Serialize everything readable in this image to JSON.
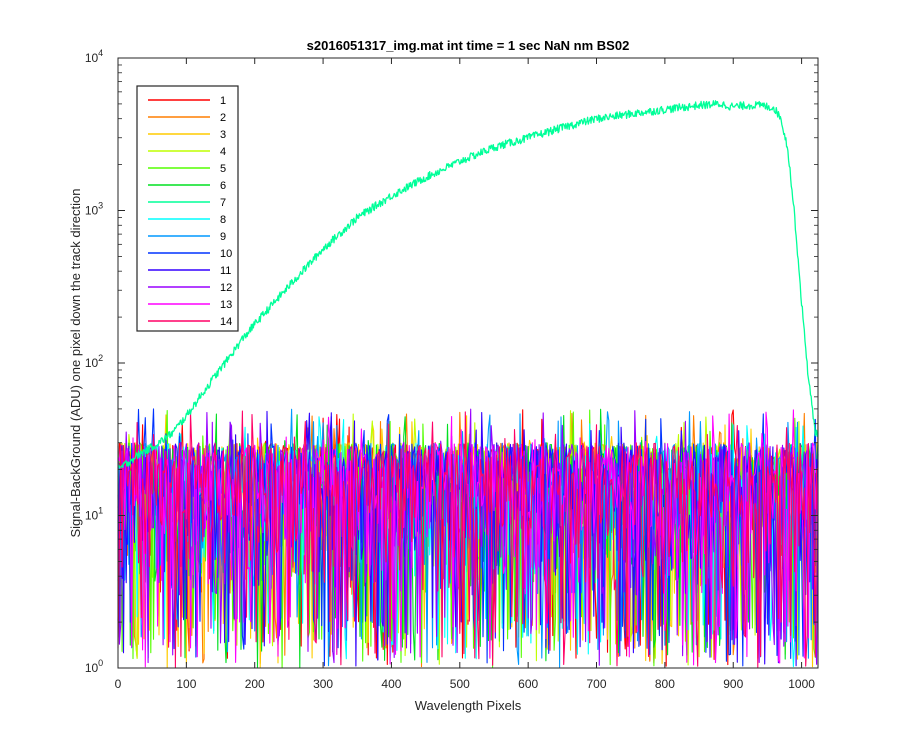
{
  "chart_data": {
    "type": "line",
    "title": "s2016051317_img.mat int time = 1 sec  NaN nm BS02",
    "xlabel": "Wavelength Pixels",
    "ylabel": "Signal-BackGround (ADU) one pixel down the track direction",
    "xlim": [
      0,
      1024
    ],
    "ylim": [
      1,
      10000
    ],
    "yscale": "log",
    "xticks": [
      0,
      100,
      200,
      300,
      400,
      500,
      600,
      700,
      800,
      900,
      1000
    ],
    "yticks": [
      {
        "value": 1,
        "base": "10",
        "exp": "0"
      },
      {
        "value": 10,
        "base": "10",
        "exp": "1"
      },
      {
        "value": 100,
        "base": "10",
        "exp": "2"
      },
      {
        "value": 1000,
        "base": "10",
        "exp": "3"
      },
      {
        "value": 10000,
        "base": "10",
        "exp": "4"
      }
    ],
    "grid": false,
    "legend_position": "top-left",
    "series": [
      {
        "name": "1",
        "color": "#ff0000",
        "kind": "noise"
      },
      {
        "name": "2",
        "color": "#ff7f00",
        "kind": "noise"
      },
      {
        "name": "3",
        "color": "#ffcc00",
        "kind": "noise"
      },
      {
        "name": "4",
        "color": "#bfff00",
        "kind": "noise"
      },
      {
        "name": "5",
        "color": "#55ff00",
        "kind": "noise"
      },
      {
        "name": "6",
        "color": "#00e020",
        "kind": "noise"
      },
      {
        "name": "7",
        "color": "#00ff99",
        "kind": "signal",
        "x": [
          0,
          30,
          60,
          80,
          100,
          120,
          140,
          160,
          180,
          200,
          250,
          300,
          350,
          400,
          450,
          500,
          550,
          600,
          650,
          700,
          750,
          800,
          850,
          880,
          900,
          920,
          940,
          950,
          960,
          970,
          980,
          990,
          1000,
          1010,
          1020
        ],
        "y": [
          20,
          25,
          30,
          35,
          45,
          60,
          80,
          105,
          140,
          180,
          320,
          560,
          900,
          1250,
          1650,
          2100,
          2600,
          3000,
          3500,
          4000,
          4300,
          4600,
          4900,
          5000,
          4800,
          4900,
          4900,
          4800,
          4700,
          4000,
          2500,
          900,
          250,
          80,
          35
        ]
      },
      {
        "name": "8",
        "color": "#00ffff",
        "kind": "noise"
      },
      {
        "name": "9",
        "color": "#0099ff",
        "kind": "noise"
      },
      {
        "name": "10",
        "color": "#0033ff",
        "kind": "noise"
      },
      {
        "name": "11",
        "color": "#3300ff",
        "kind": "noise"
      },
      {
        "name": "12",
        "color": "#9900ff",
        "kind": "noise"
      },
      {
        "name": "13",
        "color": "#ff00ff",
        "kind": "noise"
      },
      {
        "name": "14",
        "color": "#ff0066",
        "kind": "noise"
      }
    ],
    "noise_range": {
      "typical": [
        3,
        30
      ],
      "max": 50,
      "min": 1
    }
  }
}
